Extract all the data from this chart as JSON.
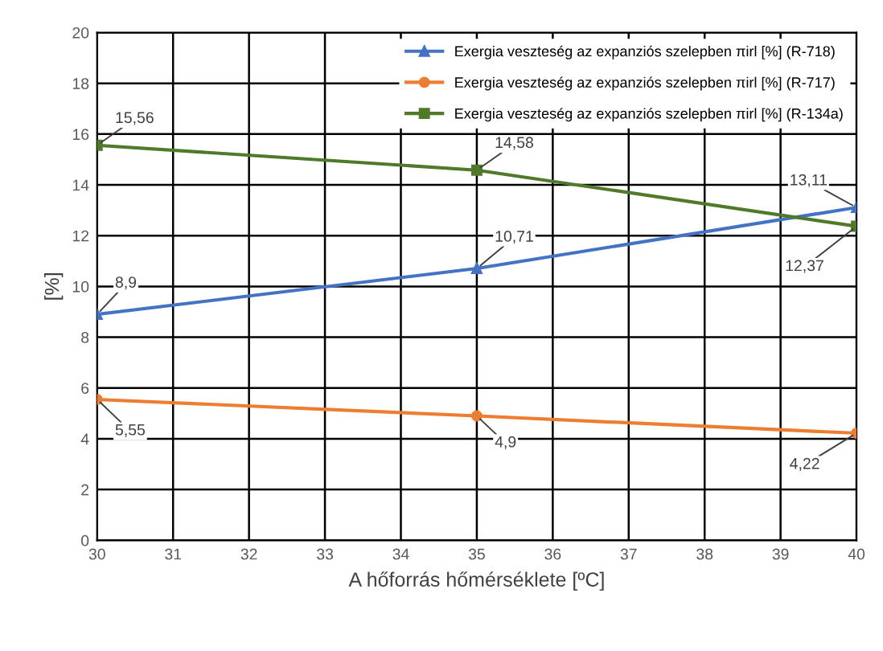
{
  "chart_data": {
    "type": "line",
    "xlabel": "A hőforrás hőmérséklete [ºC]",
    "ylabel": "[%]",
    "x": [
      30,
      35,
      40
    ],
    "series": [
      {
        "name": "Exergia veszteség az expanziós szelepben πirl [%] (R-718)",
        "color": "#4472c4",
        "values": [
          8.9,
          10.71,
          13.11
        ],
        "value_labels": [
          "8,9",
          "10,71",
          "13,11"
        ],
        "marker": "triangle"
      },
      {
        "name": "Exergia veszteség az expanziós szelepben πirl [%] (R-717)",
        "color": "#ed7d31",
        "values": [
          5.55,
          4.9,
          4.22
        ],
        "value_labels": [
          "5,55",
          "4,9",
          "4,22"
        ],
        "marker": "circle"
      },
      {
        "name": "Exergia veszteség az expanziós szelepben πirl [%] (R-134a)",
        "color": "#4e7a2a",
        "values": [
          15.56,
          14.58,
          12.37
        ],
        "value_labels": [
          "15,56",
          "14,58",
          "12,37"
        ],
        "marker": "square"
      }
    ],
    "xlim": [
      30,
      40
    ],
    "xticks": [
      30,
      31,
      32,
      33,
      34,
      35,
      36,
      37,
      38,
      39,
      40
    ],
    "ylim": [
      0,
      20
    ],
    "yticks": [
      0,
      2,
      4,
      6,
      8,
      10,
      12,
      14,
      16,
      18,
      20
    ],
    "grid": true,
    "legend": "top right",
    "line_style": "solid"
  }
}
